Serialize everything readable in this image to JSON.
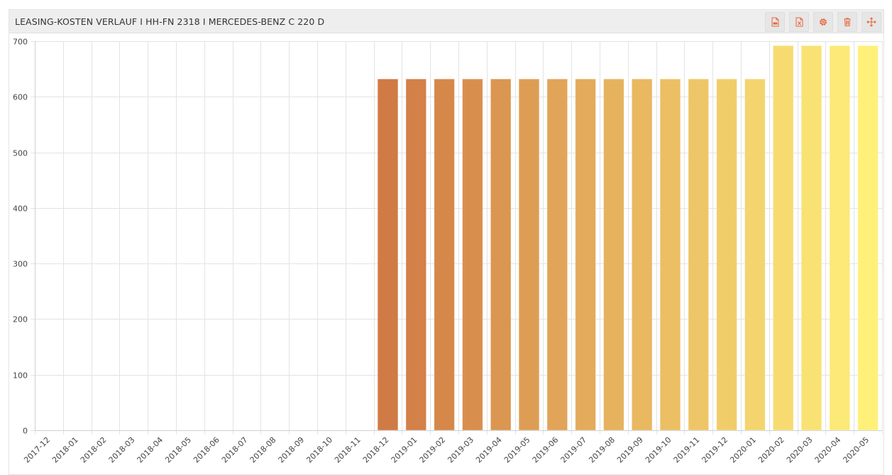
{
  "widget": {
    "title": "LEASING-KOSTEN VERLAUF I HH-FN 2318 I MERCEDES-BENZ C 220 D",
    "toolbar": [
      {
        "name": "export-pdf-button",
        "icon": "file-pdf-icon"
      },
      {
        "name": "export-excel-button",
        "icon": "file-excel-icon"
      },
      {
        "name": "settings-button",
        "icon": "gear-icon"
      },
      {
        "name": "delete-button",
        "icon": "trash-icon"
      },
      {
        "name": "move-button",
        "icon": "move-arrows-icon"
      }
    ],
    "accent_color": "#e8643c"
  },
  "chart_data": {
    "type": "bar",
    "categories": [
      "2017-12",
      "2018-01",
      "2018-02",
      "2018-03",
      "2018-04",
      "2018-05",
      "2018-06",
      "2018-07",
      "2018-08",
      "2018-09",
      "2018-10",
      "2018-11",
      "2018-12",
      "2019-01",
      "2019-02",
      "2019-03",
      "2019-04",
      "2019-05",
      "2019-06",
      "2019-07",
      "2019-08",
      "2019-09",
      "2019-10",
      "2019-11",
      "2019-12",
      "2020-01",
      "2020-02",
      "2020-03",
      "2020-04",
      "2020-05"
    ],
    "values": [
      0,
      0,
      0,
      0,
      0,
      0,
      0,
      0,
      0,
      0,
      0,
      0,
      632,
      632,
      632,
      632,
      632,
      632,
      632,
      632,
      632,
      632,
      632,
      632,
      632,
      632,
      692,
      692,
      692,
      692
    ],
    "ylim": [
      0,
      700
    ],
    "yticks": [
      0,
      100,
      200,
      300,
      400,
      500,
      600,
      700
    ],
    "grid": true,
    "legend": "none",
    "color_gradient": [
      "#d07a45",
      "#fff07a"
    ]
  }
}
